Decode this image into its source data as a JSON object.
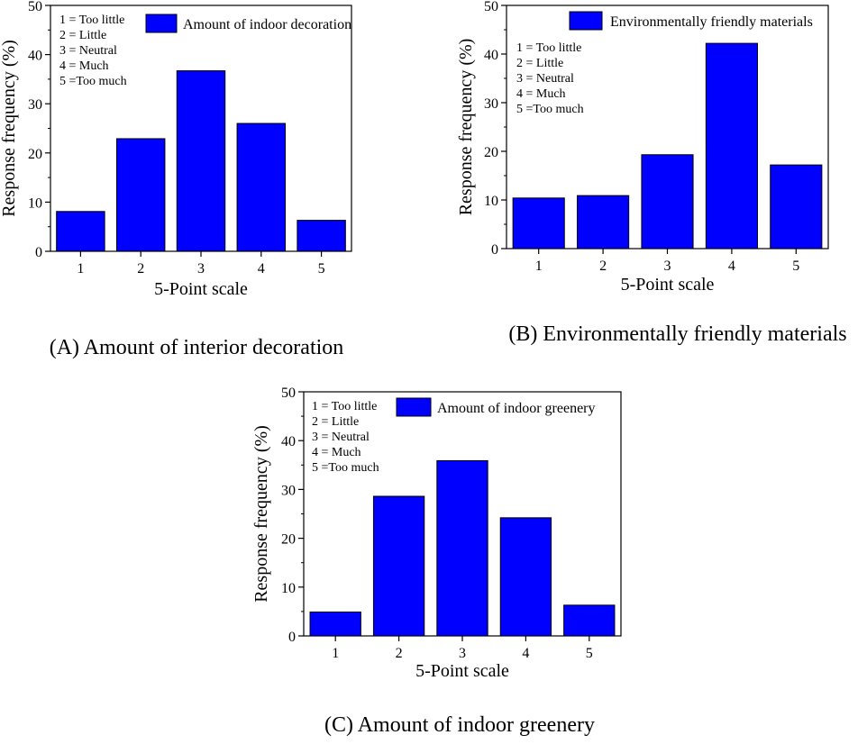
{
  "colors": {
    "bar": "#0000ff",
    "axis": "#000000",
    "background": "#ffffff"
  },
  "chart_data": [
    {
      "type": "bar",
      "caption": "(A) Amount of interior decoration",
      "legend": "Amount of indoor decoration",
      "categories": [
        "1",
        "2",
        "3",
        "4",
        "5"
      ],
      "values": [
        8.1,
        22.9,
        36.7,
        26.0,
        6.3
      ],
      "xlabel": "5-Point scale",
      "ylabel": "Response frequency (%)",
      "ylim": [
        0,
        50
      ],
      "yticks": [
        "0",
        "10",
        "20",
        "30",
        "40",
        "50"
      ],
      "scale_notes": [
        "1 = Too little",
        "2 = Little",
        "3 = Neutral",
        "4 = Much",
        "5 =Too much"
      ],
      "legend_position": "top-right",
      "notes_position": "top-left"
    },
    {
      "type": "bar",
      "caption": "(B) Environmentally friendly materials",
      "legend": "Environmentally friendly materials",
      "categories": [
        "1",
        "2",
        "3",
        "4",
        "5"
      ],
      "values": [
        10.4,
        10.9,
        19.3,
        42.2,
        17.2
      ],
      "xlabel": "5-Point scale",
      "ylabel": "Response frequency (%)",
      "ylim": [
        0,
        50
      ],
      "yticks": [
        "0",
        "10",
        "20",
        "30",
        "40",
        "50"
      ],
      "scale_notes": [
        "1 = Too little",
        "2 = Little",
        "3 = Neutral",
        "4 = Much",
        "5 =Too much"
      ],
      "legend_position": "top-right",
      "notes_position": "top-left"
    },
    {
      "type": "bar",
      "caption": "(C) Amount of indoor greenery",
      "legend": "Amount of indoor greenery",
      "categories": [
        "1",
        "2",
        "3",
        "4",
        "5"
      ],
      "values": [
        4.9,
        28.6,
        35.9,
        24.2,
        6.3
      ],
      "xlabel": "5-Point scale",
      "ylabel": "Response frequency (%)",
      "ylim": [
        0,
        50
      ],
      "yticks": [
        "0",
        "10",
        "20",
        "30",
        "40",
        "50"
      ],
      "scale_notes": [
        "1 = Too little",
        "2 = Little",
        "3 = Neutral",
        "4 = Much",
        "5 =Too much"
      ],
      "legend_position": "top-right",
      "notes_position": "top-left"
    }
  ]
}
